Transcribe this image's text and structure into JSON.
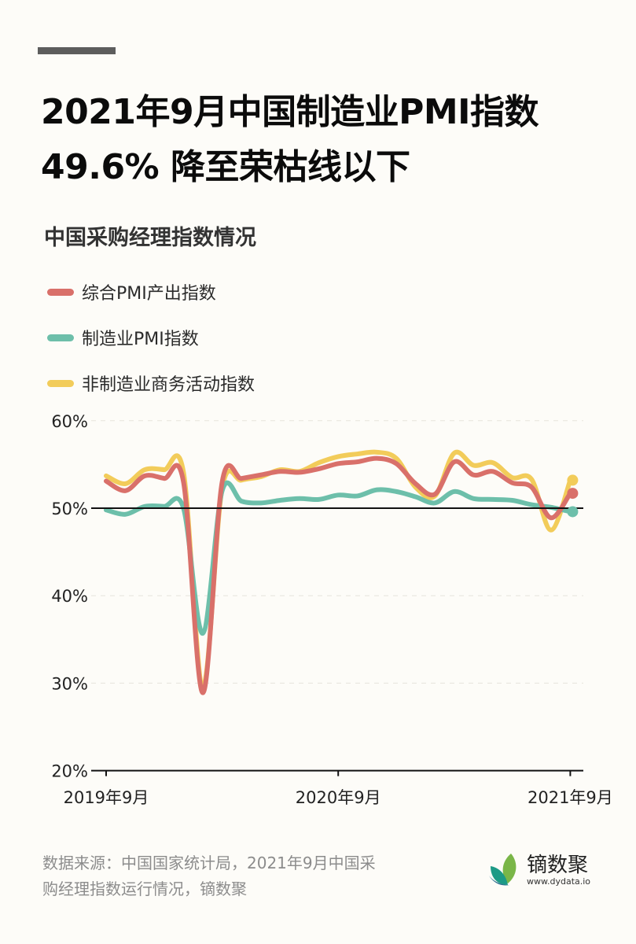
{
  "header": {
    "title_line1": "2021年9月中国制造业PMI指数",
    "title_line2": "49.6%  降至荣枯线以下",
    "subtitle": "中国采购经理指数情况"
  },
  "legend": [
    {
      "label": "综合PMI产出指数",
      "color": "#d9706a"
    },
    {
      "label": "制造业PMI指数",
      "color": "#6dbfaa"
    },
    {
      "label": "非制造业商务活动指数",
      "color": "#f2cc5a"
    }
  ],
  "axis": {
    "y_ticks": [
      "60%",
      "50%",
      "40%",
      "30%",
      "20%"
    ],
    "x_ticks": [
      "2019年9月",
      "2020年9月",
      "2021年9月"
    ]
  },
  "footer": {
    "source_line1": "数据来源：中国国家统计局，2021年9月中国采",
    "source_line2": "购经理指数运行情况，镝数聚",
    "logo_name": "镝数聚",
    "logo_url": "www.dydata.io"
  },
  "chart_data": {
    "type": "line",
    "title": "中国采购经理指数情况",
    "xlabel": "",
    "ylabel": "",
    "ylim": [
      20,
      60
    ],
    "reference_line": 50,
    "x": [
      "2019-09",
      "2019-10",
      "2019-11",
      "2019-12",
      "2020-01",
      "2020-02",
      "2020-03",
      "2020-04",
      "2020-05",
      "2020-06",
      "2020-07",
      "2020-08",
      "2020-09",
      "2020-10",
      "2020-11",
      "2020-12",
      "2021-01",
      "2021-02",
      "2021-03",
      "2021-04",
      "2021-05",
      "2021-06",
      "2021-07",
      "2021-08",
      "2021-09"
    ],
    "x_tick_labels": [
      "2019年9月",
      "2020年9月",
      "2021年9月"
    ],
    "y_tick_labels": [
      "20%",
      "30%",
      "40%",
      "50%",
      "60%"
    ],
    "series": [
      {
        "name": "非制造业商务活动指数",
        "color": "#f2cc5a",
        "values": [
          53.7,
          52.8,
          54.4,
          54.4,
          54.1,
          29.6,
          52.3,
          53.2,
          53.6,
          54.4,
          54.2,
          55.2,
          55.9,
          56.2,
          56.4,
          55.7,
          52.4,
          51.4,
          56.3,
          54.9,
          55.2,
          53.5,
          53.3,
          47.5,
          53.2
        ]
      },
      {
        "name": "制造业PMI指数",
        "color": "#6dbfaa",
        "values": [
          49.8,
          49.3,
          50.2,
          50.2,
          50.0,
          35.7,
          52.0,
          50.8,
          50.6,
          50.9,
          51.1,
          51.0,
          51.5,
          51.4,
          52.1,
          51.9,
          51.3,
          50.6,
          51.9,
          51.1,
          51.0,
          50.9,
          50.4,
          50.1,
          49.6
        ]
      },
      {
        "name": "综合PMI产出指数",
        "color": "#d9706a",
        "values": [
          53.1,
          52.0,
          53.7,
          53.4,
          53.0,
          28.9,
          53.0,
          53.4,
          53.8,
          54.2,
          54.1,
          54.5,
          55.1,
          55.3,
          55.7,
          55.1,
          52.8,
          51.6,
          55.3,
          53.8,
          54.2,
          52.9,
          52.4,
          48.9,
          51.7
        ]
      }
    ]
  }
}
